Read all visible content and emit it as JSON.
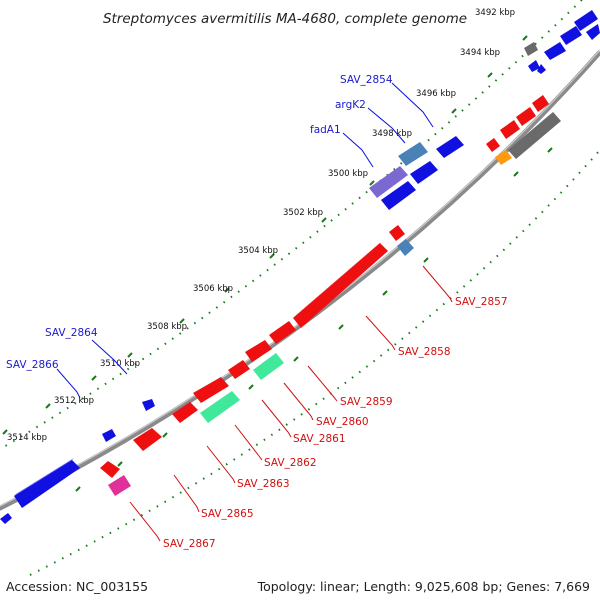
{
  "title": "Streptomyces avermitilis MA-4680, complete genome",
  "footer": {
    "accession": "Accession: NC_003155",
    "summary": "Topology: linear; Length: 9,025,608 bp; Genes: 7,669"
  },
  "kbp_ticks": [
    "3492 kbp",
    "3494 kbp",
    "3496 kbp",
    "3498 kbp",
    "3500 kbp",
    "3502 kbp",
    "3504 kbp",
    "3506 kbp",
    "3508 kbp",
    "3510 kbp",
    "3512 kbp",
    "3514 kbp"
  ],
  "gene_labels_forward": [
    "SAV_2854",
    "argK2",
    "fadA1",
    "SAV_2864",
    "SAV_2866"
  ],
  "gene_labels_reverse": [
    "SAV_2857",
    "SAV_2858",
    "SAV_2859",
    "SAV_2860",
    "SAV_2861",
    "SAV_2862",
    "SAV_2863",
    "SAV_2865",
    "SAV_2867"
  ],
  "colors": {
    "forward_gene": "#1010e0",
    "reverse_gene": "#ee1010",
    "rna_gene": "#3fe89a",
    "steel_gene": "#4a82b8",
    "purple_gene": "#7b68d0",
    "gray_gene": "#6a6a6a",
    "orange_gene": "#ff9a10",
    "magenta_gene": "#e0309a",
    "backbone": "#888888",
    "tick": "#1a7a1a"
  }
}
